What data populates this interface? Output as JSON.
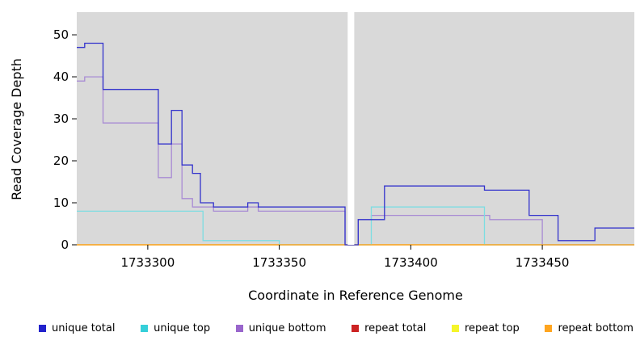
{
  "chart_data": {
    "type": "line",
    "style": "step-after",
    "title": "",
    "xlabel": "Coordinate in Reference Genome",
    "ylabel": "Read Coverage Depth",
    "xlim": [
      1733273,
      1733485
    ],
    "ylim": [
      0,
      55.4
    ],
    "xticks": [
      1733300,
      1733350,
      1733400,
      1733450
    ],
    "yticks": [
      0,
      10,
      20,
      30,
      40,
      50
    ],
    "grid": false,
    "panel_bg": "#d9d9d9",
    "gap": {
      "x0": 1733376,
      "x1": 1733378.5,
      "color": "#ffffff"
    },
    "legend_position": "bottom",
    "series": [
      {
        "name": "repeat total",
        "color": "#cc2222",
        "points": [
          [
            1733273,
            0
          ],
          [
            1733485,
            0
          ]
        ]
      },
      {
        "name": "repeat top",
        "color": "#f5f52a",
        "points": [
          [
            1733273,
            0
          ],
          [
            1733485,
            0
          ]
        ]
      },
      {
        "name": "unique bottom",
        "color": "#a88bd4",
        "points": [
          [
            1733273,
            39
          ],
          [
            1733276,
            40
          ],
          [
            1733283,
            29
          ],
          [
            1733304,
            16
          ],
          [
            1733309,
            24
          ],
          [
            1733313,
            11
          ],
          [
            1733317,
            9
          ],
          [
            1733325,
            8
          ],
          [
            1733338,
            9
          ],
          [
            1733342,
            8
          ],
          [
            1733375,
            0
          ],
          [
            1733380,
            6
          ],
          [
            1733385,
            7
          ],
          [
            1733430,
            6
          ],
          [
            1733450,
            0
          ],
          [
            1733485,
            0
          ]
        ]
      },
      {
        "name": "unique top",
        "color": "#7cdde2",
        "points": [
          [
            1733273,
            8
          ],
          [
            1733321,
            1
          ],
          [
            1733350,
            0
          ],
          [
            1733385,
            9
          ],
          [
            1733428,
            0
          ],
          [
            1733485,
            0
          ]
        ]
      },
      {
        "name": "repeat bottom",
        "color": "#ffa51f",
        "points": [
          [
            1733273,
            0
          ],
          [
            1733485,
            0
          ]
        ]
      },
      {
        "name": "unique total",
        "color": "#3333cc",
        "points": [
          [
            1733273,
            47
          ],
          [
            1733276,
            48
          ],
          [
            1733283,
            37
          ],
          [
            1733304,
            24
          ],
          [
            1733309,
            32
          ],
          [
            1733313,
            19
          ],
          [
            1733317,
            17
          ],
          [
            1733320,
            10
          ],
          [
            1733325,
            9
          ],
          [
            1733338,
            10
          ],
          [
            1733342,
            9
          ],
          [
            1733375,
            0
          ],
          [
            1733380,
            6
          ],
          [
            1733390,
            14
          ],
          [
            1733428,
            13
          ],
          [
            1733445,
            7
          ],
          [
            1733456,
            1
          ],
          [
            1733470,
            4
          ],
          [
            1733485,
            4
          ]
        ]
      }
    ],
    "legend": [
      {
        "label": "unique total",
        "color": "#2222cc"
      },
      {
        "label": "unique top",
        "color": "#35cfd9"
      },
      {
        "label": "unique bottom",
        "color": "#9966cc"
      },
      {
        "label": "repeat total",
        "color": "#cc2222"
      },
      {
        "label": "repeat top",
        "color": "#f5f52a"
      },
      {
        "label": "repeat bottom",
        "color": "#ffa51f"
      }
    ]
  }
}
